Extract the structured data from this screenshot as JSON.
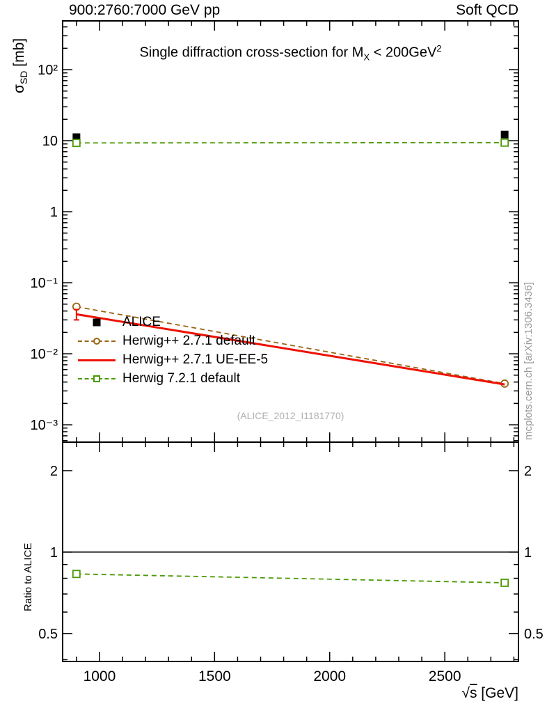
{
  "header": {
    "left": "900:2760:7000 GeV pp",
    "right": "Soft QCD"
  },
  "main_panel": {
    "title": {
      "pre": "Single diffraction cross-section for M",
      "sub": "X",
      "mid": " < 200GeV",
      "sup": "2"
    },
    "ylabel": {
      "sigma": "σ",
      "sub": "SD",
      "unit": " [mb]"
    },
    "watermark": "(ALICE_2012_I1181770)",
    "side_note": "mcplots.cern.ch [arXiv:1306.3436]"
  },
  "ratio_panel": {
    "ylabel": "Ratio to ALICE"
  },
  "xaxis": {
    "sqrt": "√",
    "s": "s",
    "unit": " [GeV]"
  },
  "legend": {
    "entries": [
      {
        "label": "ALICE",
        "marker": "filled-square",
        "line": "none",
        "color": "#000000"
      },
      {
        "label": "Herwig++ 2.7.1 default",
        "marker": "open-circle",
        "line": "dashed",
        "color": "#9a6310"
      },
      {
        "label": "Herwig++ 2.7.1 UE-EE-5",
        "marker": "none",
        "line": "solid",
        "color": "#ee1100"
      },
      {
        "label": "Herwig 7.2.1 default",
        "marker": "open-square",
        "line": "dashed",
        "color": "#4c9a06"
      }
    ]
  },
  "chart_data": [
    {
      "id": "main",
      "type": "line",
      "title": "Single diffraction cross-section for M_X < 200 GeV^2",
      "xlabel": "sqrt(s) [GeV]",
      "ylabel": "sigma_SD [mb]",
      "x": [
        900,
        2760
      ],
      "xlim": [
        840,
        2820
      ],
      "yscale": "log",
      "ylim": [
        0.00057,
        486
      ],
      "xticks": [
        1000,
        1500,
        2000,
        2500
      ],
      "yticks": [
        {
          "v": 100,
          "label": "10²"
        },
        {
          "v": 10,
          "label": "10"
        },
        {
          "v": 1,
          "label": "1"
        },
        {
          "v": 0.1,
          "label": "10⁻¹"
        },
        {
          "v": 0.01,
          "label": "10⁻²"
        },
        {
          "v": 0.001,
          "label": "10⁻³"
        }
      ],
      "series": [
        {
          "name": "ALICE",
          "marker": "filled-square",
          "line": "none",
          "color": "#000000",
          "values": [
            11.2,
            12.2
          ]
        },
        {
          "name": "Herwig++ 2.7.1 default",
          "marker": "open-circle",
          "line": "dashed",
          "color": "#9a6310",
          "values": [
            0.046,
            0.0038
          ]
        },
        {
          "name": "Herwig++ 2.7.1 UE-EE-5",
          "marker": "none",
          "line": "solid",
          "color": "#ee1100",
          "values": [
            0.036,
            0.0037
          ],
          "yerr": [
            0.006,
            0
          ]
        },
        {
          "name": "Herwig 7.2.1 default",
          "marker": "open-square",
          "line": "dashed",
          "color": "#4c9a06",
          "values": [
            9.3,
            9.4
          ]
        }
      ]
    },
    {
      "id": "ratio",
      "type": "line",
      "title": "Ratio to ALICE",
      "x": [
        900,
        2760
      ],
      "xlim": [
        840,
        2820
      ],
      "yscale": "log",
      "ylim": [
        0.394,
        2.55
      ],
      "xticks": [
        1000,
        1500,
        2000,
        2500
      ],
      "yticks": [
        {
          "v": 2,
          "label": "2"
        },
        {
          "v": 1,
          "label": "1"
        },
        {
          "v": 0.5,
          "label": "0.5"
        }
      ],
      "reference_line": 1,
      "series": [
        {
          "name": "Herwig 7.2.1 default",
          "marker": "open-square",
          "line": "dashed",
          "color": "#4c9a06",
          "values": [
            0.83,
            0.77
          ]
        }
      ]
    }
  ]
}
